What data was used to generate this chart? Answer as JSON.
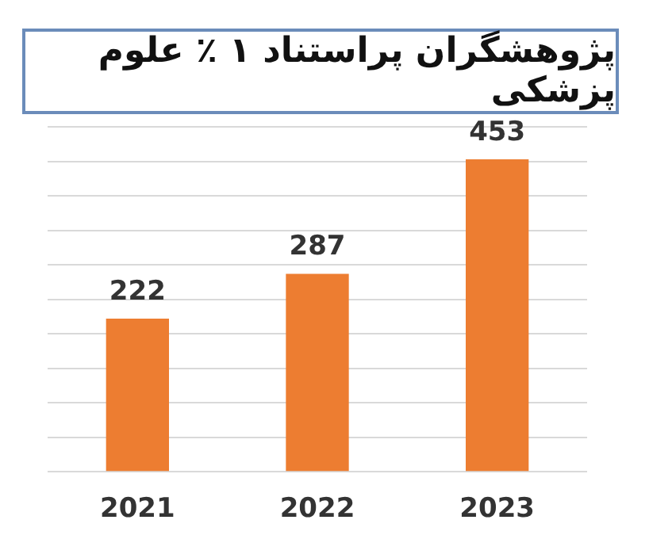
{
  "chart_data": {
    "type": "bar",
    "title": "پژوهشگران پراستناد ۱ ٪ علوم پزشکی",
    "categories": [
      "2021",
      "2022",
      "2023"
    ],
    "values": [
      222,
      287,
      453
    ],
    "color": "#ed7d31",
    "ylim": [
      0,
      500
    ],
    "yticks": [
      {
        "value": 0,
        "label": null
      },
      {
        "value": 50,
        "label": null
      },
      {
        "value": 100,
        "label": null
      },
      {
        "value": 150,
        "label": null
      },
      {
        "value": 200,
        "label": null
      },
      {
        "value": 250,
        "label": null
      },
      {
        "value": 300,
        "label": null
      },
      {
        "value": 350,
        "label": null
      },
      {
        "value": 400,
        "label": null
      },
      {
        "value": 450,
        "label": null
      },
      {
        "value": 500,
        "label": null
      }
    ],
    "grid": "y",
    "tick_labels": "x",
    "data_labels": true
  }
}
